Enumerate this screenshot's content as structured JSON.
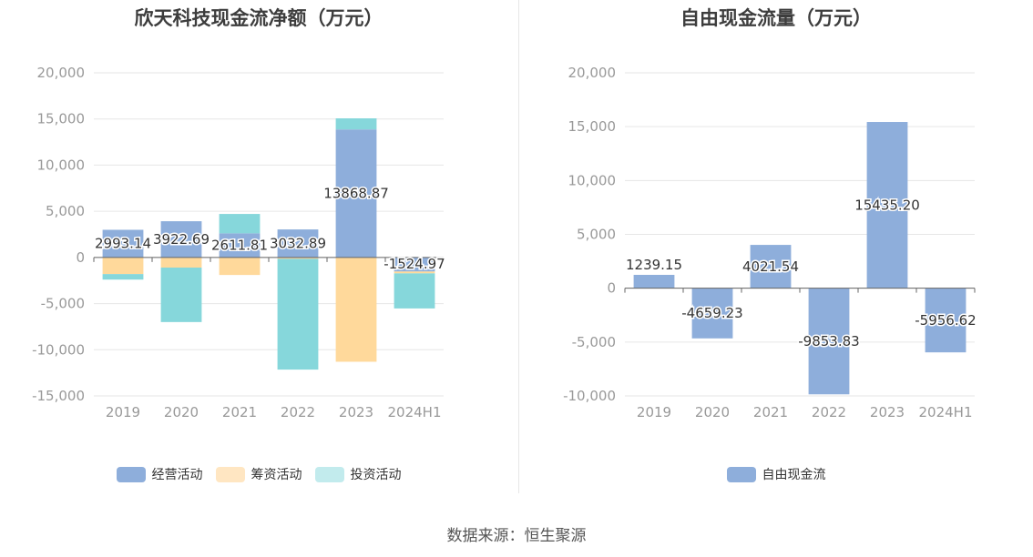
{
  "colors": {
    "operating": "#8eaedb",
    "financing": "#ffd99b",
    "investing": "#86d7db",
    "free": "#8eaedb",
    "legend_financing": "#ffe6c2",
    "legend_investing": "#c2ebed",
    "grid": "#e6e6e6",
    "axis": "#666666",
    "tick_text": "#999999",
    "label_text": "#333333"
  },
  "source_text": "数据来源：恒生聚源",
  "chart_data": [
    {
      "type": "bar",
      "stacked": true,
      "title": "欣天科技现金流净额（万元）",
      "categories": [
        "2019",
        "2020",
        "2021",
        "2022",
        "2023",
        "2024H1"
      ],
      "ylim": [
        -15000,
        20000
      ],
      "yticks": [
        -15000,
        -10000,
        -5000,
        0,
        5000,
        10000,
        15000,
        20000
      ],
      "ytick_labels": [
        "-15,000",
        "-10,000",
        "-5,000",
        "0",
        "5,000",
        "10,000",
        "15,000",
        "20,000"
      ],
      "series": [
        {
          "name": "经营活动",
          "color_key": "operating",
          "values": [
            2993.14,
            3922.69,
            2611.81,
            3032.89,
            13868.87,
            -1524.97
          ]
        },
        {
          "name": "筹资活动",
          "color_key": "financing",
          "values": [
            -1800,
            -1100,
            -1900,
            -150,
            -11300,
            -200
          ]
        },
        {
          "name": "投资活动",
          "color_key": "investing",
          "values": [
            -600,
            -5900,
            2100,
            -12000,
            1200,
            -3800
          ]
        }
      ],
      "data_labels": [
        "2993.14",
        "3922.69",
        "2611.81",
        "3032.89",
        "13868.87",
        "-1524.97"
      ],
      "legend": [
        "经营活动",
        "筹资活动",
        "投资活动"
      ]
    },
    {
      "type": "bar",
      "title": "自由现金流量（万元）",
      "categories": [
        "2019",
        "2020",
        "2021",
        "2022",
        "2023",
        "2024H1"
      ],
      "ylim": [
        -10000,
        20000
      ],
      "yticks": [
        -10000,
        -5000,
        0,
        5000,
        10000,
        15000,
        20000
      ],
      "ytick_labels": [
        "-10,000",
        "-5,000",
        "0",
        "5,000",
        "10,000",
        "15,000",
        "20,000"
      ],
      "series": [
        {
          "name": "自由现金流",
          "color_key": "free",
          "values": [
            1239.15,
            -4659.23,
            4021.54,
            -9853.83,
            15435.2,
            -5956.62
          ]
        }
      ],
      "data_labels": [
        "1239.15",
        "-4659.23",
        "4021.54",
        "-9853.83",
        "15435.20",
        "-5956.62"
      ],
      "legend": [
        "自由现金流"
      ]
    }
  ]
}
